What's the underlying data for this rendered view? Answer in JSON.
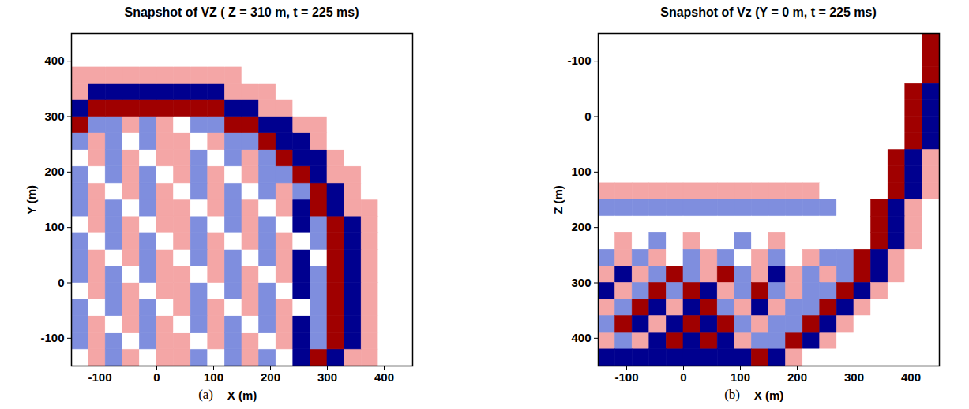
{
  "chart_data": [
    {
      "type": "heatmap",
      "title": "Snapshot of VZ ( Z = 310 m, t = 225 ms)",
      "x_label": "X (m)",
      "y_label": "Y (m)",
      "panel_label": "(a)",
      "xlim": [
        -150,
        450
      ],
      "ylim": [
        -150,
        450
      ],
      "xticks": [
        -100,
        0,
        100,
        200,
        300,
        400
      ],
      "yticks": [
        -100,
        0,
        100,
        200,
        300,
        400
      ],
      "zlim": [
        -2,
        2
      ],
      "x_edges": [
        -150,
        -120,
        -90,
        -60,
        -30,
        0,
        30,
        60,
        90,
        120,
        150,
        180,
        210,
        240,
        270,
        300,
        330,
        360,
        390,
        420,
        450
      ],
      "y_edges": [
        -150,
        -120,
        -90,
        -60,
        -30,
        0,
        30,
        60,
        90,
        120,
        150,
        180,
        210,
        240,
        270,
        300,
        330,
        360,
        390,
        420,
        450
      ],
      "values": [
        [
          0,
          1,
          -1,
          1,
          0,
          1,
          1,
          -1,
          0,
          -1,
          1,
          -1,
          0,
          -2,
          2,
          -2,
          1,
          1,
          0,
          0
        ],
        [
          -1,
          1,
          -1,
          0,
          -1,
          1,
          1,
          0,
          1,
          -1,
          1,
          0,
          1,
          -2,
          -1,
          2,
          -2,
          1,
          0,
          0
        ],
        [
          -1,
          1,
          0,
          1,
          -1,
          1,
          0,
          -1,
          1,
          -1,
          0,
          -1,
          1,
          -2,
          -1,
          2,
          -2,
          1,
          0,
          0
        ],
        [
          -1,
          0,
          -1,
          1,
          -1,
          0,
          1,
          -1,
          1,
          0,
          1,
          -1,
          1,
          0,
          -1,
          2,
          -2,
          1,
          0,
          0
        ],
        [
          0,
          1,
          -1,
          1,
          0,
          1,
          1,
          -1,
          0,
          -1,
          1,
          -1,
          0,
          -2,
          -1,
          2,
          -2,
          1,
          0,
          0
        ],
        [
          -1,
          1,
          -1,
          0,
          -1,
          1,
          1,
          0,
          1,
          -1,
          1,
          0,
          1,
          -2,
          -1,
          2,
          -2,
          1,
          0,
          0
        ],
        [
          -1,
          1,
          0,
          1,
          -1,
          1,
          0,
          -1,
          1,
          -1,
          0,
          -1,
          1,
          -2,
          0,
          2,
          -2,
          1,
          0,
          0
        ],
        [
          -1,
          0,
          -1,
          1,
          -1,
          0,
          1,
          -1,
          1,
          0,
          1,
          -1,
          1,
          0,
          -1,
          2,
          -2,
          1,
          0,
          0
        ],
        [
          0,
          1,
          -1,
          1,
          0,
          1,
          1,
          -1,
          0,
          -1,
          1,
          -1,
          0,
          -2,
          -1,
          2,
          -2,
          1,
          0,
          0
        ],
        [
          -1,
          1,
          -1,
          0,
          -1,
          1,
          1,
          0,
          1,
          -1,
          1,
          0,
          1,
          -2,
          2,
          -2,
          1,
          1,
          0,
          0
        ],
        [
          -1,
          1,
          0,
          1,
          -1,
          1,
          0,
          -1,
          1,
          -1,
          0,
          -1,
          1,
          -1,
          2,
          -2,
          1,
          0,
          0,
          0
        ],
        [
          -1,
          0,
          -1,
          1,
          -1,
          0,
          1,
          -1,
          1,
          0,
          1,
          -1,
          -1,
          2,
          -2,
          1,
          1,
          0,
          0,
          0
        ],
        [
          0,
          1,
          -1,
          1,
          0,
          1,
          1,
          -1,
          0,
          -1,
          1,
          -1,
          2,
          -2,
          -2,
          1,
          0,
          0,
          0,
          0
        ],
        [
          -1,
          1,
          -1,
          0,
          -1,
          1,
          1,
          0,
          1,
          -1,
          -1,
          2,
          -2,
          -2,
          1,
          0,
          0,
          0,
          0,
          0
        ],
        [
          2,
          -1,
          -1,
          1,
          -1,
          1,
          0,
          -1,
          -1,
          2,
          2,
          -2,
          -2,
          1,
          1,
          0,
          0,
          0,
          0,
          0
        ],
        [
          -2,
          2,
          2,
          2,
          2,
          2,
          2,
          2,
          2,
          -2,
          -2,
          1,
          1,
          0,
          0,
          0,
          0,
          0,
          0,
          0
        ],
        [
          1,
          -2,
          -2,
          -2,
          -2,
          -2,
          -2,
          -2,
          -2,
          1,
          1,
          1,
          0,
          0,
          0,
          0,
          0,
          0,
          0,
          0
        ],
        [
          1,
          1,
          1,
          1,
          1,
          1,
          1,
          1,
          1,
          1,
          0,
          0,
          0,
          0,
          0,
          0,
          0,
          0,
          0,
          0
        ],
        [
          0,
          0,
          0,
          0,
          0,
          0,
          0,
          0,
          0,
          0,
          0,
          0,
          0,
          0,
          0,
          0,
          0,
          0,
          0,
          0
        ],
        [
          0,
          0,
          0,
          0,
          0,
          0,
          0,
          0,
          0,
          0,
          0,
          0,
          0,
          0,
          0,
          0,
          0,
          0,
          0,
          0
        ]
      ]
    },
    {
      "type": "heatmap",
      "title": "Snapshot of Vz (Y = 0 m, t = 225 ms)",
      "x_label": "X (m)",
      "y_label": "Z (m)",
      "panel_label": "(b)",
      "xlim": [
        -150,
        450
      ],
      "ylim": [
        450,
        -150
      ],
      "xticks": [
        -100,
        0,
        100,
        200,
        300,
        400
      ],
      "yticks": [
        -100,
        0,
        100,
        200,
        300,
        400
      ],
      "zlim": [
        -2,
        2
      ],
      "x_edges": [
        -150,
        -120,
        -90,
        -60,
        -30,
        0,
        30,
        60,
        90,
        120,
        150,
        180,
        210,
        240,
        270,
        300,
        330,
        360,
        390,
        420,
        450
      ],
      "y_edges": [
        -150,
        -120,
        -90,
        -60,
        -30,
        0,
        30,
        60,
        90,
        120,
        150,
        180,
        210,
        240,
        270,
        300,
        330,
        360,
        390,
        420,
        450
      ],
      "values": [
        [
          0,
          0,
          0,
          0,
          0,
          0,
          0,
          0,
          0,
          0,
          0,
          0,
          0,
          0,
          0,
          0,
          0,
          0,
          0,
          2
        ],
        [
          0,
          0,
          0,
          0,
          0,
          0,
          0,
          0,
          0,
          0,
          0,
          0,
          0,
          0,
          0,
          0,
          0,
          0,
          0,
          2
        ],
        [
          0,
          0,
          0,
          0,
          0,
          0,
          0,
          0,
          0,
          0,
          0,
          0,
          0,
          0,
          0,
          0,
          0,
          0,
          0,
          2
        ],
        [
          0,
          0,
          0,
          0,
          0,
          0,
          0,
          0,
          0,
          0,
          0,
          0,
          0,
          0,
          0,
          0,
          0,
          0,
          2,
          -2
        ],
        [
          0,
          0,
          0,
          0,
          0,
          0,
          0,
          0,
          0,
          0,
          0,
          0,
          0,
          0,
          0,
          0,
          0,
          0,
          2,
          -2
        ],
        [
          0,
          0,
          0,
          0,
          0,
          0,
          0,
          0,
          0,
          0,
          0,
          0,
          0,
          0,
          0,
          0,
          0,
          0,
          2,
          -2
        ],
        [
          0,
          0,
          0,
          0,
          0,
          0,
          0,
          0,
          0,
          0,
          0,
          0,
          0,
          0,
          0,
          0,
          0,
          0,
          2,
          -2
        ],
        [
          0,
          0,
          0,
          0,
          0,
          0,
          0,
          0,
          0,
          0,
          0,
          0,
          0,
          0,
          0,
          0,
          0,
          2,
          -2,
          1
        ],
        [
          0,
          0,
          0,
          0,
          0,
          0,
          0,
          0,
          0,
          0,
          0,
          0,
          0,
          0,
          0,
          0,
          0,
          2,
          -2,
          1
        ],
        [
          1,
          1,
          1,
          1,
          1,
          1,
          1,
          1,
          1,
          1,
          1,
          1,
          1,
          0,
          0,
          0,
          0,
          2,
          -2,
          1
        ],
        [
          -1,
          -1,
          -1,
          -1,
          -1,
          -1,
          -1,
          -1,
          -1,
          -1,
          -1,
          -1,
          -1,
          -1,
          0,
          0,
          2,
          -2,
          1,
          0
        ],
        [
          0,
          0,
          0,
          0,
          0,
          0,
          0,
          0,
          0,
          0,
          0,
          0,
          0,
          0,
          0,
          0,
          2,
          -2,
          1,
          0
        ],
        [
          0,
          1,
          0,
          -1,
          0,
          1,
          0,
          0,
          -1,
          0,
          1,
          0,
          0,
          0,
          0,
          0,
          2,
          -2,
          1,
          0
        ],
        [
          -1,
          1,
          -1,
          1,
          0,
          -1,
          1,
          -1,
          0,
          1,
          -1,
          0,
          1,
          -1,
          -1,
          2,
          -2,
          1,
          0,
          0
        ],
        [
          1,
          -2,
          1,
          -1,
          2,
          -1,
          1,
          2,
          -1,
          1,
          -2,
          1,
          -1,
          1,
          -1,
          2,
          -2,
          1,
          0,
          0
        ],
        [
          -2,
          1,
          -1,
          2,
          -1,
          2,
          -2,
          1,
          -1,
          2,
          -1,
          1,
          -1,
          -1,
          2,
          -2,
          1,
          0,
          0,
          0
        ],
        [
          1,
          -1,
          2,
          -2,
          1,
          -2,
          2,
          -1,
          1,
          -2,
          1,
          -1,
          -1,
          2,
          -2,
          1,
          0,
          0,
          0,
          0
        ],
        [
          -1,
          2,
          -2,
          1,
          -2,
          2,
          -2,
          2,
          -1,
          1,
          -1,
          -1,
          2,
          -2,
          1,
          0,
          0,
          0,
          0,
          0
        ],
        [
          1,
          -1,
          1,
          -2,
          2,
          -2,
          2,
          -2,
          1,
          -1,
          -1,
          2,
          -2,
          1,
          0,
          0,
          0,
          0,
          0,
          0
        ],
        [
          -2,
          -2,
          -2,
          -2,
          -2,
          -2,
          -2,
          -2,
          -2,
          2,
          -2,
          1,
          0,
          0,
          0,
          0,
          0,
          0,
          0,
          0
        ]
      ]
    }
  ]
}
